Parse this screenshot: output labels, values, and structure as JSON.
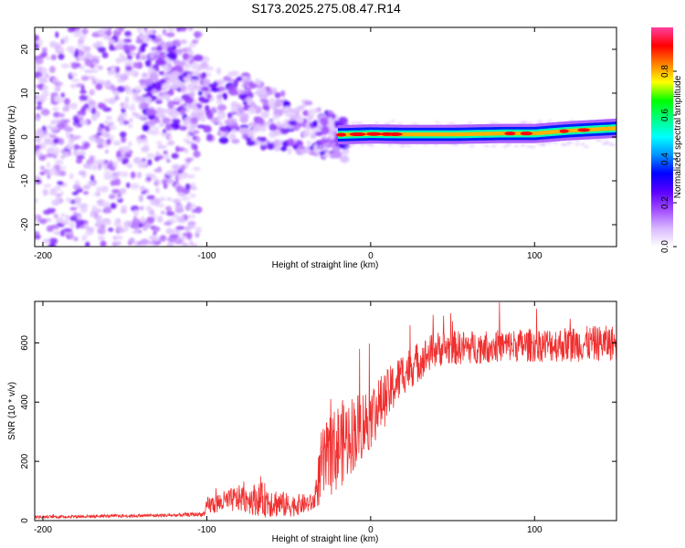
{
  "title": "S173.2025.275.08.47.R14",
  "spectrogram": {
    "type": "heatmap",
    "xlabel": "Height of straight line (km)",
    "ylabel": "Frequency (Hz)",
    "xlim": [
      -205,
      150
    ],
    "ylim": [
      -25,
      25
    ],
    "xticks": [
      -200,
      -100,
      0,
      100
    ],
    "yticks": [
      -20,
      -10,
      0,
      10,
      20
    ],
    "colorbar": {
      "label": "Normalized spectral amplitude",
      "range": [
        0,
        1
      ],
      "ticks": [
        "0.0",
        "0.2",
        "0.4",
        "0.6",
        "0.8"
      ],
      "tick_values": [
        0.0,
        0.2,
        0.4,
        0.6,
        0.8
      ],
      "colors": [
        "#ffffff",
        "#d9b8ff",
        "#a24dff",
        "#5a00ff",
        "#0000ff",
        "#0090ff",
        "#00ffff",
        "#00ff80",
        "#00ff00",
        "#ffff00",
        "#ff8000",
        "#ff0000",
        "#ff40a0"
      ]
    },
    "carrier_track": [
      {
        "x": -20,
        "f": 0.5
      },
      {
        "x": 0,
        "f": 0.7
      },
      {
        "x": 20,
        "f": 0.6
      },
      {
        "x": 50,
        "f": 0.6
      },
      {
        "x": 80,
        "f": 0.8
      },
      {
        "x": 100,
        "f": 0.8
      },
      {
        "x": 120,
        "f": 1.4
      },
      {
        "x": 150,
        "f": 2.0
      }
    ]
  },
  "snr": {
    "type": "line",
    "xlabel": "Height of straight line (km)",
    "ylabel": "SNR (10 * v/v)",
    "xlim": [
      -205,
      150
    ],
    "ylim": [
      0,
      740
    ],
    "xticks": [
      -200,
      -100,
      0,
      100
    ],
    "yticks": [
      0,
      200,
      400,
      600
    ],
    "color": "#f03030",
    "profile": [
      {
        "x": -205,
        "y": 12,
        "spread": 10
      },
      {
        "x": -120,
        "y": 18,
        "spread": 12
      },
      {
        "x": -101,
        "y": 22,
        "spread": 15
      },
      {
        "x": -100,
        "y": 50,
        "spread": 60
      },
      {
        "x": -80,
        "y": 75,
        "spread": 90
      },
      {
        "x": -65,
        "y": 70,
        "spread": 120
      },
      {
        "x": -50,
        "y": 50,
        "spread": 80
      },
      {
        "x": -35,
        "y": 60,
        "spread": 60
      },
      {
        "x": -30,
        "y": 180,
        "spread": 250
      },
      {
        "x": -20,
        "y": 250,
        "spread": 300
      },
      {
        "x": -10,
        "y": 300,
        "spread": 260
      },
      {
        "x": 0,
        "y": 350,
        "spread": 220
      },
      {
        "x": 10,
        "y": 420,
        "spread": 180
      },
      {
        "x": 20,
        "y": 500,
        "spread": 150
      },
      {
        "x": 40,
        "y": 580,
        "spread": 120
      },
      {
        "x": 80,
        "y": 590,
        "spread": 110
      },
      {
        "x": 120,
        "y": 595,
        "spread": 120
      },
      {
        "x": 150,
        "y": 600,
        "spread": 120
      }
    ]
  }
}
